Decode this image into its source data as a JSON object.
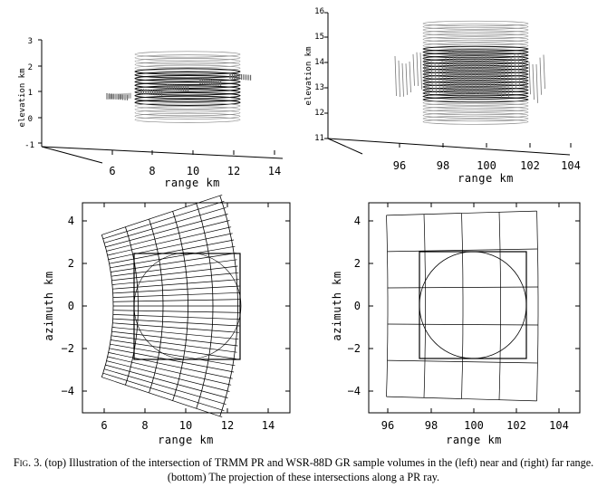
{
  "panels": {
    "top_left": {
      "xlabel": "range km",
      "ylabel": "elevation km",
      "xticks": [
        "6",
        "8",
        "10",
        "12",
        "14"
      ],
      "yticks": [
        "3",
        "2",
        "1",
        "0",
        "-1"
      ]
    },
    "top_right": {
      "xlabel": "range km",
      "ylabel": "elevation km",
      "xticks": [
        "96",
        "98",
        "100",
        "102",
        "104"
      ],
      "yticks": [
        "16",
        "15",
        "14",
        "13",
        "12",
        "11"
      ]
    },
    "bottom_left": {
      "xlabel": "range km",
      "ylabel": "azimuth km",
      "xticks": [
        "6",
        "8",
        "10",
        "12",
        "14"
      ],
      "yticks": [
        "4",
        "2",
        "0",
        "−2",
        "−4"
      ]
    },
    "bottom_right": {
      "xlabel": "range km",
      "ylabel": "azimuth km",
      "xticks": [
        "96",
        "98",
        "100",
        "102",
        "104"
      ],
      "yticks": [
        "4",
        "2",
        "0",
        "−2",
        "−4"
      ]
    }
  },
  "caption": {
    "figno": "Fig. 3.",
    "text": " (top) Illustration of the intersection of TRMM PR and WSR-88D GR sample volumes in the (left) near and (right) far range. (bottom) The projection of these intersections along a PR ray."
  }
}
